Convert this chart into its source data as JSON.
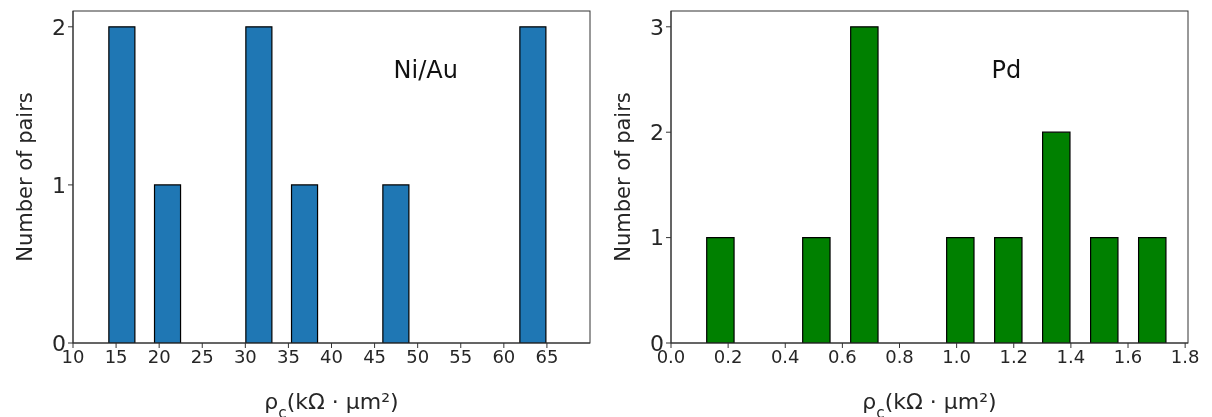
{
  "chart_data": [
    {
      "type": "histogram",
      "bins": [
        13,
        18.3,
        23.6,
        28.9,
        34.2,
        39.5,
        44.8,
        50.1,
        55.4,
        60.7,
        66
      ],
      "values": [
        2,
        1,
        0,
        2,
        1,
        0,
        1,
        0,
        0,
        2
      ],
      "color": "#1f77b4",
      "xlabel": "ρ$_{c}$(kΩ · μm²)",
      "ylabel": "Number of pairs",
      "annotations": [
        "Ni/Au"
      ],
      "xlim": [
        10,
        70
      ],
      "xticks": [
        10,
        15,
        20,
        25,
        30,
        35,
        40,
        45,
        50,
        55,
        60,
        65
      ],
      "ylim": [
        0,
        2.1
      ],
      "yticks": [
        0,
        1,
        2
      ],
      "grid": false,
      "legend": false
    },
    {
      "type": "histogram",
      "bins": [
        0.09,
        0.258,
        0.426,
        0.594,
        0.762,
        0.93,
        1.098,
        1.266,
        1.434,
        1.602,
        1.77
      ],
      "values": [
        1,
        0,
        1,
        3,
        0,
        1,
        1,
        2,
        1,
        1
      ],
      "color": "#008000",
      "xlabel": "ρ$_{c}$(kΩ · μm²)",
      "ylabel": "Number of pairs",
      "annotations": [
        "Pd"
      ],
      "xlim": [
        0,
        1.81
      ],
      "xticks": [
        {
          "value": 0,
          "label": "0.0"
        },
        {
          "value": 0.2,
          "label": "0.2"
        },
        {
          "value": 0.4,
          "label": "0.4"
        },
        {
          "value": 0.6,
          "label": "0.6"
        },
        {
          "value": 0.8,
          "label": "0.8"
        },
        {
          "value": 1,
          "label": "1.0"
        },
        {
          "value": 1.2,
          "label": "1.2"
        },
        {
          "value": 1.4,
          "label": "1.4"
        },
        {
          "value": 1.6,
          "label": "1.6"
        },
        {
          "value": 1.8,
          "label": "1.8"
        }
      ],
      "ylim": [
        0,
        3.15
      ],
      "yticks": [
        0,
        1,
        2,
        3
      ],
      "grid": false,
      "legend": false
    }
  ]
}
